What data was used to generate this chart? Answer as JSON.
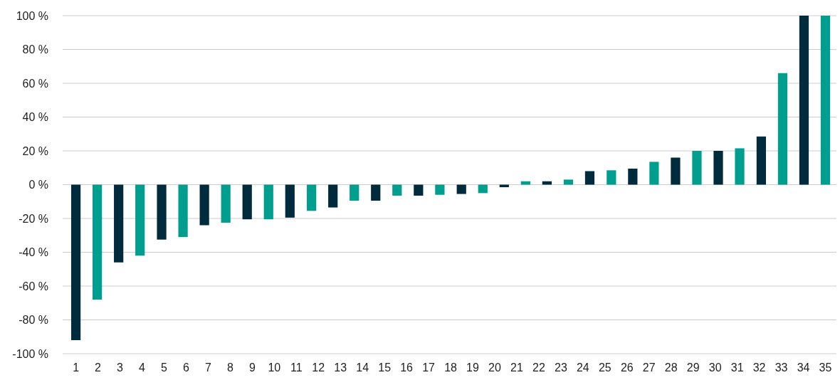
{
  "chart_data": {
    "type": "bar",
    "x": [
      1,
      1.97,
      2.94,
      3.91,
      4.89,
      5.86,
      6.83,
      7.8,
      8.77,
      9.74,
      10.71,
      11.69,
      12.66,
      13.63,
      14.6,
      15.57,
      16.54,
      17.51,
      18.49,
      19.46,
      20.43,
      21.4,
      22.37,
      23.34,
      24.31,
      25.29,
      26.26,
      27.23,
      28.2,
      29.17,
      30.14,
      31.11,
      32.09,
      33.06,
      34.03,
      35
    ],
    "values": [
      -92,
      -68,
      -46,
      -42,
      -32.5,
      -31,
      -24,
      -22.5,
      -20.5,
      -20.5,
      -19.5,
      -15.5,
      -13.5,
      -9.5,
      -9.5,
      -6.5,
      -6.5,
      -6,
      -5.5,
      -5,
      -1.5,
      2,
      2,
      3,
      8,
      8.5,
      9.5,
      13.5,
      16,
      20,
      20,
      21.5,
      28.5,
      66,
      100,
      100
    ],
    "colors": [
      "#002b3d",
      "#009e8e",
      "#002b3d",
      "#009e8e",
      "#002b3d",
      "#009e8e",
      "#002b3d",
      "#009e8e",
      "#002b3d",
      "#009e8e",
      "#002b3d",
      "#009e8e",
      "#002b3d",
      "#009e8e",
      "#002b3d",
      "#009e8e",
      "#002b3d",
      "#009e8e",
      "#002b3d",
      "#009e8e",
      "#002b3d",
      "#009e8e",
      "#002b3d",
      "#009e8e",
      "#002b3d",
      "#009e8e",
      "#002b3d",
      "#009e8e",
      "#002b3d",
      "#009e8e",
      "#002b3d",
      "#009e8e",
      "#002b3d",
      "#009e8e",
      "#002b3d",
      "#009e8e"
    ],
    "xlim": [
      0.4,
      35.5
    ],
    "xticks": [
      1,
      2,
      3,
      4,
      5,
      6,
      7,
      8,
      9,
      10,
      11,
      12,
      13,
      14,
      15,
      16,
      17,
      18,
      19,
      20,
      21,
      22,
      23,
      24,
      25,
      26,
      27,
      28,
      29,
      30,
      31,
      32,
      33,
      34,
      35
    ],
    "ylim": [
      -100,
      100
    ],
    "yticks": [
      {
        "value": -100,
        "label": "-100 %"
      },
      {
        "value": -80,
        "label": "-80 %"
      },
      {
        "value": -60,
        "label": "-60 %"
      },
      {
        "value": -40,
        "label": "-40 %"
      },
      {
        "value": -20,
        "label": "-20 %"
      },
      {
        "value": 0,
        "label": "0 %"
      },
      {
        "value": 20,
        "label": "20 %"
      },
      {
        "value": 40,
        "label": "40 %"
      },
      {
        "value": 60,
        "label": "60 %"
      },
      {
        "value": 80,
        "label": "80 %"
      },
      {
        "value": 100,
        "label": "100 %"
      }
    ],
    "grid": "y"
  }
}
